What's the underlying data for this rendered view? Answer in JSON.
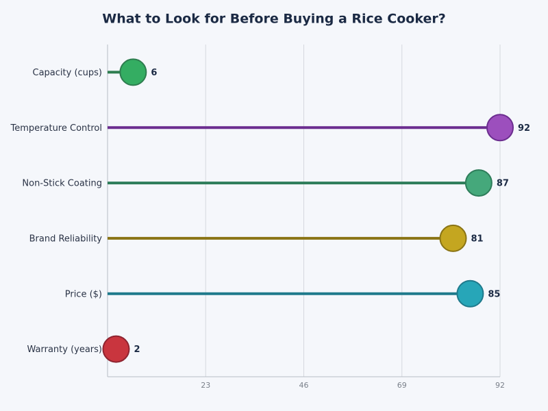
{
  "chart_data": {
    "type": "lollipop",
    "title": "What to Look for Before Buying a Rice Cooker?",
    "categories": [
      "Capacity (cups)",
      "Temperature Control",
      "Non-Stick Coating",
      "Brand Reliability",
      "Price ($)",
      "Warranty (years)"
    ],
    "values": [
      6,
      92,
      87,
      81,
      85,
      2
    ],
    "colors": [
      "#34ad62",
      "#9c4fbd",
      "#45a87b",
      "#c4a620",
      "#27a6b8",
      "#c9353e"
    ],
    "stem_colors": [
      "#2e7d4f",
      "#6b2d8f",
      "#2e7d5a",
      "#8a7414",
      "#1f7a8c",
      "#8e2430"
    ],
    "xlim": [
      0,
      92
    ],
    "xticks": [
      23,
      46,
      69,
      92
    ],
    "grid": true
  }
}
